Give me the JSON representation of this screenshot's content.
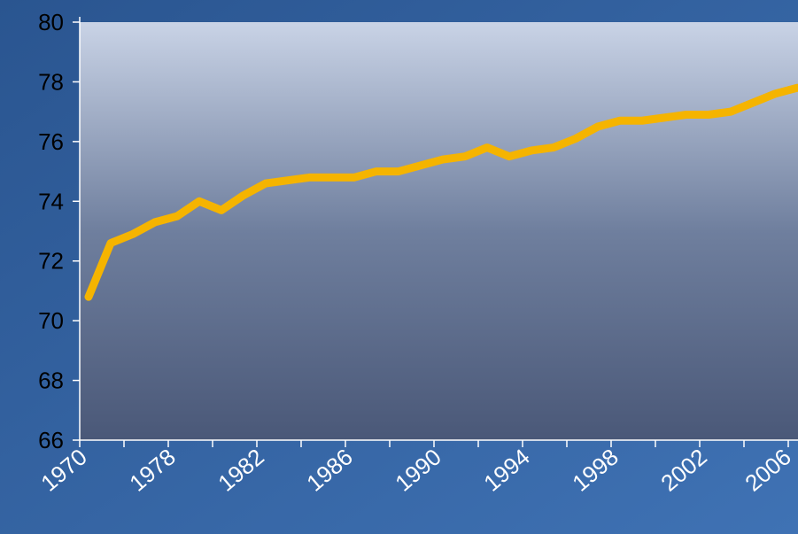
{
  "chart_data": {
    "type": "line",
    "categories": [
      "1970",
      null,
      null,
      null,
      "1978",
      null,
      null,
      null,
      "1982",
      null,
      null,
      null,
      "1986",
      null,
      null,
      null,
      "1990",
      null,
      null,
      null,
      "1994",
      null,
      null,
      null,
      "1998",
      null,
      null,
      null,
      "2002",
      null,
      null,
      null,
      "2006"
    ],
    "values": [
      70.8,
      72.6,
      72.9,
      73.3,
      73.5,
      74.0,
      73.7,
      74.2,
      74.6,
      74.7,
      74.8,
      74.8,
      74.8,
      75.0,
      75.0,
      75.2,
      75.4,
      75.5,
      75.8,
      75.5,
      75.7,
      75.8,
      76.1,
      76.5,
      76.7,
      76.7,
      76.8,
      76.9,
      76.9,
      77.0,
      77.3,
      77.6,
      77.8
    ],
    "color": "#f5b400",
    "ylim": [
      66,
      80
    ],
    "yticks": [
      66,
      68,
      70,
      72,
      74,
      76,
      78,
      80
    ]
  }
}
